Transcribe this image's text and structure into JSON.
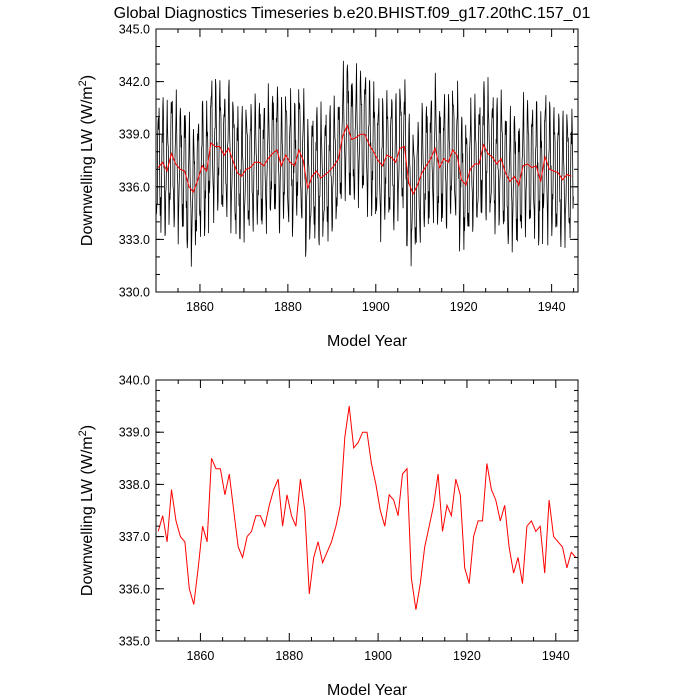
{
  "title": "Global Diagnostics Timeseries b.e20.BHIST.f09_g17.20thC.157_01",
  "colors": {
    "monthly": "#000000",
    "annual": "#ff0000"
  },
  "chart_data": [
    {
      "type": "line",
      "xlabel": "Model Year",
      "ylabel_main": "Downwelling LW (W/m",
      "ylabel_sup": "2",
      "ylabel_close": ")",
      "xlim": [
        1850,
        1946
      ],
      "ylim": [
        330.0,
        345.0
      ],
      "xticks": [
        1860,
        1880,
        1900,
        1920,
        1940
      ],
      "yticks": [
        "330.0",
        "333.0",
        "336.0",
        "339.0",
        "342.0",
        "345.0"
      ],
      "series": [
        {
          "kind": "monthly",
          "color": "#000000",
          "seasonal_amplitude": 3.2,
          "x_start": 1850.04,
          "x_step": 0.08333,
          "baseline": "annual_mean"
        },
        {
          "kind": "annual",
          "color": "#ff0000",
          "x_start": 1850.5,
          "x_step": 1,
          "values": [
            337.1,
            337.4,
            336.9,
            337.9,
            337.3,
            337.0,
            336.9,
            336.0,
            335.7,
            336.4,
            337.2,
            336.9,
            338.5,
            338.3,
            338.3,
            337.8,
            338.2,
            337.5,
            336.8,
            336.6,
            337.0,
            337.1,
            337.4,
            337.4,
            337.2,
            337.6,
            337.9,
            338.1,
            337.2,
            337.8,
            337.4,
            337.2,
            338.1,
            337.5,
            335.9,
            336.6,
            336.9,
            336.5,
            336.7,
            336.9,
            337.2,
            337.6,
            338.9,
            339.5,
            338.7,
            338.8,
            339.0,
            339.0,
            338.4,
            338.0,
            337.5,
            337.2,
            337.8,
            337.7,
            337.4,
            338.2,
            338.3,
            336.2,
            335.6,
            336.1,
            336.8,
            337.2,
            337.6,
            338.2,
            337.1,
            337.6,
            337.4,
            338.1,
            337.8,
            336.4,
            336.1,
            337.0,
            337.3,
            337.3,
            338.4,
            337.9,
            337.7,
            337.3,
            337.6,
            336.8,
            336.3,
            336.6,
            336.1,
            337.2,
            337.3,
            337.1,
            337.2,
            336.3,
            337.7,
            337.0,
            336.9,
            336.8,
            336.4,
            336.7,
            336.6
          ]
        }
      ]
    },
    {
      "type": "line",
      "xlabel": "Model Year",
      "ylabel_main": "Downwelling LW (W/m",
      "ylabel_sup": "2",
      "ylabel_close": ")",
      "xlim": [
        1850,
        1945
      ],
      "ylim": [
        335.0,
        340.0
      ],
      "xticks": [
        1860,
        1880,
        1900,
        1920,
        1940
      ],
      "yticks": [
        "335.0",
        "336.0",
        "337.0",
        "338.0",
        "339.0",
        "340.0"
      ],
      "series": [
        {
          "kind": "annual",
          "color": "#ff0000",
          "x_start": 1850.5,
          "x_step": 1,
          "values_ref": 0
        }
      ]
    }
  ]
}
